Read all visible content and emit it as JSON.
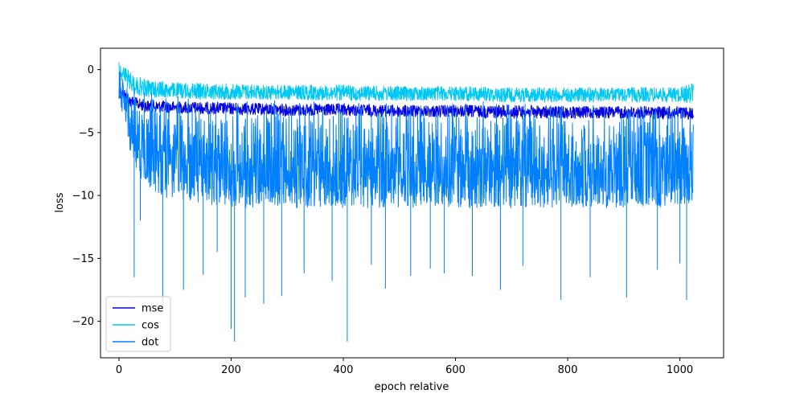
{
  "chart_data": {
    "type": "line",
    "title": "",
    "xlabel": "epoch relative",
    "ylabel": "loss",
    "xlim": [
      -33,
      1078
    ],
    "ylim": [
      -22.9,
      1.7
    ],
    "xticks": [
      0,
      200,
      400,
      600,
      800,
      1000
    ],
    "xtick_labels": [
      "0",
      "200",
      "400",
      "600",
      "800",
      "1000"
    ],
    "yticks": [
      0,
      -5,
      -10,
      -15,
      -20
    ],
    "ytick_labels": [
      "0",
      "−5",
      "−10",
      "−15",
      "−20"
    ],
    "grid": false,
    "legend_position": "lower-left",
    "series": [
      {
        "name": "mse",
        "color": "#0000e0",
        "x": [
          0,
          10,
          20,
          30,
          50,
          100,
          200,
          300,
          400,
          500,
          600,
          700,
          800,
          900,
          1000,
          1024
        ],
        "upper": [
          -1.2,
          -1.5,
          -2.0,
          -2.2,
          -2.4,
          -2.5,
          -2.6,
          -2.7,
          -2.7,
          -2.8,
          -2.8,
          -2.8,
          -2.9,
          -2.9,
          -2.9,
          -3.0
        ],
        "lower": [
          -2.2,
          -2.6,
          -3.0,
          -3.2,
          -3.4,
          -3.5,
          -3.6,
          -3.7,
          -3.7,
          -3.8,
          -3.8,
          -3.9,
          -3.9,
          -3.9,
          -4.0,
          -4.0
        ]
      },
      {
        "name": "cos",
        "color": "#00c8f5",
        "x": [
          0,
          10,
          20,
          30,
          50,
          100,
          200,
          300,
          400,
          500,
          600,
          700,
          800,
          900,
          1000,
          1024
        ],
        "upper": [
          0.6,
          0.3,
          -0.2,
          -0.5,
          -0.8,
          -1.0,
          -1.1,
          -1.2,
          -1.2,
          -1.3,
          -1.3,
          -1.4,
          -1.4,
          -1.4,
          -1.4,
          -1.0
        ],
        "lower": [
          -0.5,
          -1.2,
          -1.7,
          -2.0,
          -2.2,
          -2.3,
          -2.4,
          -2.4,
          -2.5,
          -2.5,
          -2.5,
          -2.6,
          -2.6,
          -2.6,
          -2.6,
          -2.7
        ]
      },
      {
        "name": "dot",
        "color": "#0080ff",
        "x": [
          0,
          10,
          20,
          30,
          50,
          100,
          200,
          300,
          400,
          500,
          600,
          700,
          800,
          900,
          1000,
          1024
        ],
        "upper": [
          0.3,
          -0.3,
          -0.8,
          -1.0,
          -1.5,
          -2.0,
          -2.1,
          -2.2,
          -2.3,
          -2.3,
          -2.4,
          -2.4,
          -2.5,
          -2.5,
          -2.6,
          -2.0
        ],
        "lower": [
          -2.5,
          -4.0,
          -6.5,
          -8.0,
          -9.5,
          -10.5,
          -11.0,
          -11.0,
          -11.0,
          -11.0,
          -11.0,
          -11.0,
          -11.0,
          -11.0,
          -11.0,
          -10.5
        ]
      }
    ],
    "dot_spikes": [
      {
        "x": 27,
        "y": -16.5
      },
      {
        "x": 38,
        "y": -12.0
      },
      {
        "x": 78,
        "y": -19.0
      },
      {
        "x": 115,
        "y": -17.5
      },
      {
        "x": 150,
        "y": -16.3
      },
      {
        "x": 175,
        "y": -14.5
      },
      {
        "x": 200,
        "y": -20.6
      },
      {
        "x": 206,
        "y": -21.6
      },
      {
        "x": 225,
        "y": -18.1
      },
      {
        "x": 258,
        "y": -18.6
      },
      {
        "x": 290,
        "y": -18.0
      },
      {
        "x": 330,
        "y": -16.2
      },
      {
        "x": 380,
        "y": -16.8
      },
      {
        "x": 407,
        "y": -21.6
      },
      {
        "x": 450,
        "y": -15.5
      },
      {
        "x": 475,
        "y": -17.4
      },
      {
        "x": 520,
        "y": -16.4
      },
      {
        "x": 555,
        "y": -15.8
      },
      {
        "x": 580,
        "y": -16.2
      },
      {
        "x": 630,
        "y": -16.4
      },
      {
        "x": 680,
        "y": -17.5
      },
      {
        "x": 720,
        "y": -15.6
      },
      {
        "x": 788,
        "y": -18.3
      },
      {
        "x": 840,
        "y": -16.5
      },
      {
        "x": 905,
        "y": -18.1
      },
      {
        "x": 960,
        "y": -15.9
      },
      {
        "x": 1000,
        "y": -15.4
      },
      {
        "x": 1012,
        "y": -18.3
      }
    ]
  }
}
